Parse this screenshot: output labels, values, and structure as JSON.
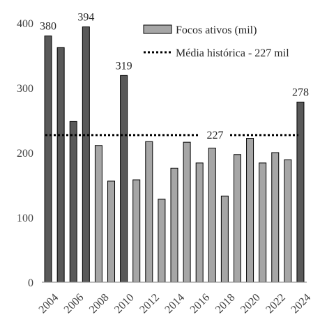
{
  "chart_data": {
    "type": "bar",
    "categories": [
      "2004",
      "2005",
      "2006",
      "2007",
      "2008",
      "2009",
      "2010",
      "2011",
      "2012",
      "2013",
      "2014",
      "2015",
      "2016",
      "2017",
      "2018",
      "2019",
      "2020",
      "2021",
      "2022",
      "2023",
      "2024"
    ],
    "x_tick_labels": [
      "2004",
      "2006",
      "2008",
      "2010",
      "2012",
      "2014",
      "2016",
      "2018",
      "2020",
      "2022",
      "2024"
    ],
    "series": [
      {
        "name": "Focos ativos (mil)",
        "values": [
          380,
          362,
          248,
          394,
          211,
          156,
          319,
          158,
          217,
          128,
          176,
          216,
          184,
          207,
          133,
          197,
          222,
          184,
          200,
          189,
          278
        ]
      }
    ],
    "highlighted_categories": [
      "2004",
      "2005",
      "2006",
      "2007",
      "2010",
      "2024"
    ],
    "data_labels": [
      {
        "category": "2004",
        "text": "380"
      },
      {
        "category": "2007",
        "text": "394"
      },
      {
        "category": "2010",
        "text": "319"
      },
      {
        "category": "2024",
        "text": "278"
      }
    ],
    "reference_line": {
      "name": "Média histórica - 227 mil",
      "value": 227,
      "label": "227"
    },
    "ylim": [
      0,
      400
    ],
    "yticks": [
      0,
      100,
      200,
      300,
      400
    ],
    "title": "",
    "xlabel": "",
    "ylabel": "",
    "grid": false,
    "legend_position": "top-right",
    "colors": {
      "highlight_bar": "#595959",
      "normal_bar": "#a6a6a6",
      "bar_edge": "#000000",
      "reference_line": "#000000",
      "axis": "#7f7f7f"
    }
  }
}
